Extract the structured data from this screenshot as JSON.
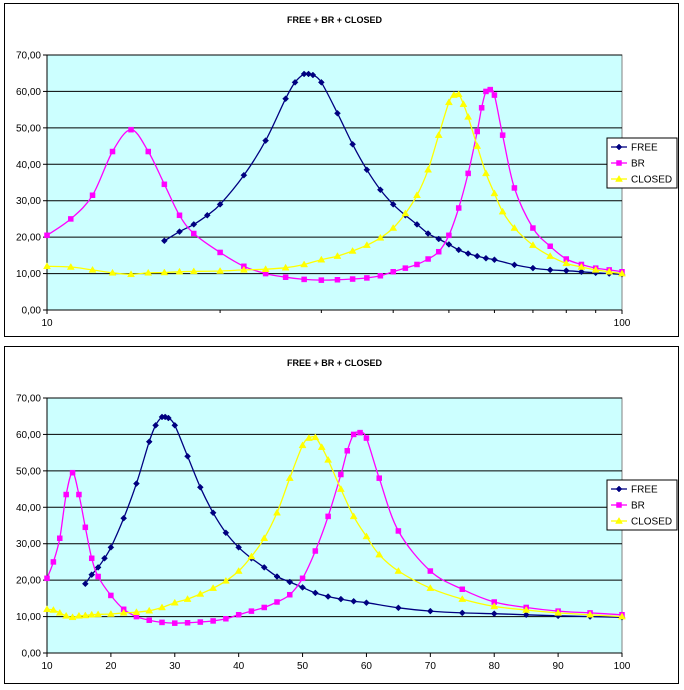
{
  "chart_data": [
    {
      "type": "line",
      "title": "FREE + BR + CLOSED",
      "xscale": "log",
      "xlim": [
        10,
        100
      ],
      "ylim": [
        0,
        70
      ],
      "x_tick_labels": [
        "10",
        "100"
      ],
      "y_tick_labels": [
        "0,00",
        "10,00",
        "20,00",
        "30,00",
        "40,00",
        "50,00",
        "60,00",
        "70,00"
      ],
      "plot_background": "#ccffff",
      "grid": "horizontal",
      "legend": "right",
      "series": [
        {
          "name": "FREE",
          "color": "#000080",
          "marker": "diamond",
          "x": [
            16,
            17,
            18,
            19,
            20,
            22,
            24,
            26,
            27,
            28,
            28.5,
            29,
            30,
            32,
            34,
            36,
            38,
            40,
            42,
            44,
            46,
            48,
            50,
            52,
            54,
            56,
            58,
            60,
            65,
            70,
            75,
            80,
            85,
            90,
            95,
            100
          ],
          "y": [
            19,
            21.5,
            23.5,
            26,
            29,
            37,
            46.5,
            58,
            62.5,
            64.8,
            64.8,
            64.5,
            62.5,
            54,
            45.5,
            38.5,
            33,
            29,
            26,
            23.5,
            21,
            19.5,
            18,
            16.5,
            15.5,
            14.8,
            14.2,
            13.8,
            12.4,
            11.5,
            11,
            10.8,
            10.5,
            10.2,
            10,
            9.8
          ]
        },
        {
          "name": "BR",
          "color": "#ff00ff",
          "marker": "square",
          "x": [
            10,
            11,
            12,
            13,
            14,
            15,
            16,
            17,
            18,
            20,
            22,
            24,
            26,
            28,
            30,
            32,
            34,
            36,
            38,
            40,
            42,
            44,
            46,
            48,
            50,
            52,
            54,
            56,
            57,
            58,
            59,
            60,
            62,
            65,
            70,
            75,
            80,
            85,
            90,
            95,
            100
          ],
          "y": [
            20.5,
            25,
            31.5,
            43.5,
            49.5,
            43.5,
            34.5,
            26,
            21,
            15.8,
            12,
            10,
            9,
            8.4,
            8.2,
            8.3,
            8.5,
            8.8,
            9.4,
            10.5,
            11.5,
            12.5,
            14,
            16,
            20.5,
            28,
            37.5,
            49,
            55.5,
            60,
            60.5,
            59,
            48,
            33.5,
            22.5,
            17.5,
            14,
            12.5,
            11.5,
            11,
            10.5
          ]
        },
        {
          "name": "CLOSED",
          "color": "#ffff00",
          "marker": "triangle",
          "x": [
            10,
            11,
            12,
            13,
            14,
            15,
            16,
            17,
            18,
            20,
            22,
            24,
            26,
            28,
            30,
            32,
            34,
            36,
            38,
            40,
            42,
            44,
            46,
            48,
            50,
            51,
            52,
            53,
            54,
            56,
            58,
            60,
            62,
            65,
            70,
            75,
            80,
            85,
            90,
            95,
            100
          ],
          "y": [
            12,
            11.8,
            11,
            10.2,
            9.8,
            10.2,
            10.3,
            10.5,
            10.6,
            10.7,
            11,
            11.2,
            11.6,
            12.5,
            13.8,
            14.8,
            16.2,
            17.8,
            19.8,
            22.5,
            26.5,
            31.5,
            38.5,
            48,
            57,
            59,
            59.2,
            56.5,
            53,
            45,
            37.5,
            32,
            27,
            22.5,
            17.8,
            14.8,
            12.8,
            11.8,
            11,
            10.5,
            10
          ]
        }
      ]
    },
    {
      "type": "line",
      "title": "FREE + BR + CLOSED",
      "xscale": "linear",
      "xlim": [
        10,
        100
      ],
      "ylim": [
        0,
        70
      ],
      "x_tick_labels": [
        "10",
        "20",
        "30",
        "40",
        "50",
        "60",
        "70",
        "80",
        "90",
        "100"
      ],
      "y_tick_labels": [
        "0,00",
        "10,00",
        "20,00",
        "30,00",
        "40,00",
        "50,00",
        "60,00",
        "70,00"
      ],
      "plot_background": "#ccffff",
      "grid": "horizontal",
      "legend": "right",
      "series": [
        {
          "name": "FREE",
          "color": "#000080",
          "marker": "diamond",
          "x": [
            16,
            17,
            18,
            19,
            20,
            22,
            24,
            26,
            27,
            28,
            28.5,
            29,
            30,
            32,
            34,
            36,
            38,
            40,
            42,
            44,
            46,
            48,
            50,
            52,
            54,
            56,
            58,
            60,
            65,
            70,
            75,
            80,
            85,
            90,
            95,
            100
          ],
          "y": [
            19,
            21.5,
            23.5,
            26,
            29,
            37,
            46.5,
            58,
            62.5,
            64.8,
            64.8,
            64.5,
            62.5,
            54,
            45.5,
            38.5,
            33,
            29,
            26,
            23.5,
            21,
            19.5,
            18,
            16.5,
            15.5,
            14.8,
            14.2,
            13.8,
            12.4,
            11.5,
            11,
            10.8,
            10.5,
            10.2,
            10,
            9.8
          ]
        },
        {
          "name": "BR",
          "color": "#ff00ff",
          "marker": "square",
          "x": [
            10,
            11,
            12,
            13,
            14,
            15,
            16,
            17,
            18,
            20,
            22,
            24,
            26,
            28,
            30,
            32,
            34,
            36,
            38,
            40,
            42,
            44,
            46,
            48,
            50,
            52,
            54,
            56,
            57,
            58,
            59,
            60,
            62,
            65,
            70,
            75,
            80,
            85,
            90,
            95,
            100
          ],
          "y": [
            20.5,
            25,
            31.5,
            43.5,
            49.5,
            43.5,
            34.5,
            26,
            21,
            15.8,
            12,
            10,
            9,
            8.4,
            8.2,
            8.3,
            8.5,
            8.8,
            9.4,
            10.5,
            11.5,
            12.5,
            14,
            16,
            20.5,
            28,
            37.5,
            49,
            55.5,
            60,
            60.5,
            59,
            48,
            33.5,
            22.5,
            17.5,
            14,
            12.5,
            11.5,
            11,
            10.5
          ]
        },
        {
          "name": "CLOSED",
          "color": "#ffff00",
          "marker": "triangle",
          "x": [
            10,
            11,
            12,
            13,
            14,
            15,
            16,
            17,
            18,
            20,
            22,
            24,
            26,
            28,
            30,
            32,
            34,
            36,
            38,
            40,
            42,
            44,
            46,
            48,
            50,
            51,
            52,
            53,
            54,
            56,
            58,
            60,
            62,
            65,
            70,
            75,
            80,
            85,
            90,
            95,
            100
          ],
          "y": [
            12,
            11.8,
            11,
            10.2,
            9.8,
            10.2,
            10.3,
            10.5,
            10.6,
            10.7,
            11,
            11.2,
            11.6,
            12.5,
            13.8,
            14.8,
            16.2,
            17.8,
            19.8,
            22.5,
            26.5,
            31.5,
            38.5,
            48,
            57,
            59,
            59.2,
            56.5,
            53,
            45,
            37.5,
            32,
            27,
            22.5,
            17.8,
            14.8,
            12.8,
            11.8,
            11,
            10.5,
            10
          ]
        }
      ]
    }
  ]
}
